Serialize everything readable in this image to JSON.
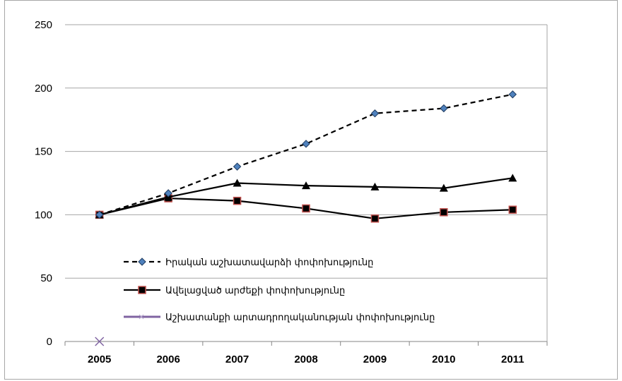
{
  "chart_data": {
    "type": "line",
    "categories": [
      "2005",
      "2006",
      "2007",
      "2008",
      "2009",
      "2010",
      "2011"
    ],
    "ylim": [
      0,
      250
    ],
    "yticks": [
      0,
      50,
      100,
      150,
      200,
      250
    ],
    "grid": true,
    "legend_position": "inside-bottom-left",
    "series": [
      {
        "name": "Իրական աշխատավարձի փոփոխությունը",
        "style": "dashed",
        "marker": "diamond",
        "color": "#000000",
        "marker_color": "#4f81bd",
        "values": [
          100,
          117,
          138,
          156,
          180,
          184,
          195
        ]
      },
      {
        "name": "Ավելացված արժեքի փոփոխությունը",
        "style": "solid",
        "marker": "square",
        "color": "#000000",
        "marker_color": "#c0504d",
        "values": [
          100,
          113,
          111,
          105,
          97,
          102,
          104
        ]
      },
      {
        "name": "",
        "style": "solid",
        "marker": "triangle",
        "color": "#000000",
        "marker_color": "#000000",
        "values": [
          100,
          114,
          125,
          123,
          122,
          121,
          129
        ]
      },
      {
        "name": "Աշխատանքի արտադրողականության փոփոխությունը",
        "style": "solid",
        "marker": "x",
        "color": "#8064a2",
        "marker_color": "#8064a2",
        "values": [
          0,
          null,
          null,
          null,
          null,
          null,
          null
        ]
      }
    ]
  }
}
